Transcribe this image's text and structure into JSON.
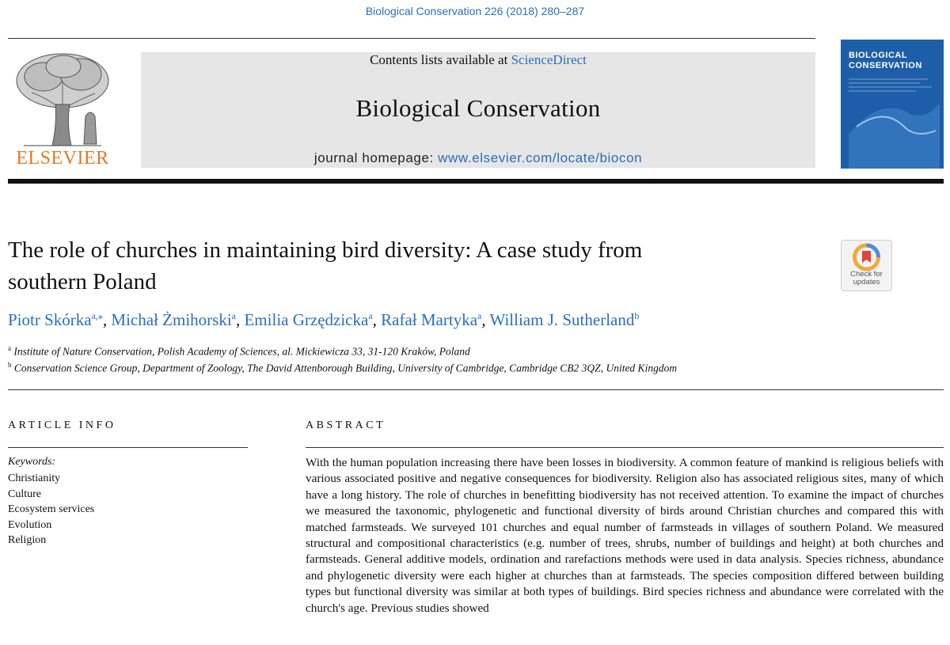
{
  "citation": "Biological Conservation 226 (2018) 280–287",
  "header": {
    "contents_prefix": "Contents lists available at ",
    "contents_link": "ScienceDirect",
    "journal_name": "Biological Conservation",
    "homepage_prefix": "journal homepage: ",
    "homepage_url": "www.elsevier.com/locate/biocon",
    "publisher_logo_text": "ELSEVIER",
    "cover_title_1": "BIOLOGICAL",
    "cover_title_2": "CONSERVATION"
  },
  "check_updates": {
    "line1": "Check for",
    "line2": "updates"
  },
  "article": {
    "title_line1": "The role of churches in maintaining bird diversity: A case study from",
    "title_line2": "southern Poland"
  },
  "authors": [
    {
      "name": "Piotr Skórka",
      "sup": "a,⁎"
    },
    {
      "name": "Michał Żmihorski",
      "sup": "a"
    },
    {
      "name": "Emilia Grzędzicka",
      "sup": "a"
    },
    {
      "name": "Rafał Martyka",
      "sup": "a"
    },
    {
      "name": "William J. Sutherland",
      "sup": "b"
    }
  ],
  "affiliations": [
    {
      "sup": "a",
      "text": "Institute of Nature Conservation, Polish Academy of Sciences, al. Mickiewicza 33, 31-120 Kraków, Poland"
    },
    {
      "sup": "b",
      "text": "Conservation Science Group, Department of Zoology, The David Attenborough Building, University of Cambridge, Cambridge CB2 3QZ, United Kingdom"
    }
  ],
  "article_info": {
    "heading": "ARTICLE INFO",
    "keywords_label": "Keywords:",
    "keywords": [
      "Christianity",
      "Culture",
      "Ecosystem services",
      "Evolution",
      "Religion"
    ]
  },
  "abstract": {
    "heading": "ABSTRACT",
    "text": "With the human population increasing there have been losses in biodiversity. A common feature of mankind is religious beliefs with various associated positive and negative consequences for biodiversity. Religion also has associated religious sites, many of which have a long history. The role of churches in benefitting biodiversity has not received attention. To examine the impact of churches we measured the taxonomic, phylogenetic and functional diversity of birds around Christian churches and compared this with matched farmsteads. We surveyed 101 churches and equal number of farmsteads in villages of southern Poland. We measured structural and compositional characteristics (e.g. number of trees, shrubs, number of buildings and height) at both churches and farmsteads. General additive models, ordination and rarefactions methods were used in data analysis. Species richness, abundance and phylogenetic diversity were each higher at churches than at farmsteads. The species composition differed between building types but functional diversity was similar at both types of buildings. Bird species richness and abundance were correlated with the church's age. Previous studies showed"
  }
}
